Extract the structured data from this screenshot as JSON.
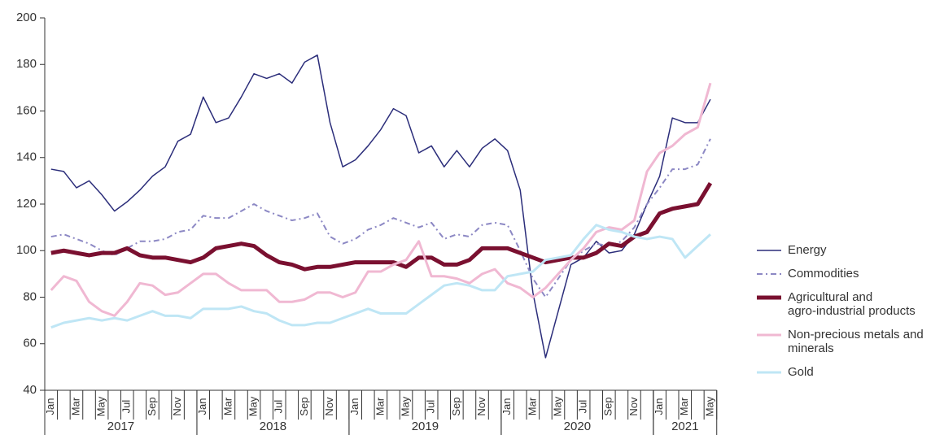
{
  "chart_data": {
    "type": "line",
    "categories": [
      "Jan",
      null,
      "Mar",
      null,
      "May",
      null,
      "Jul",
      null,
      "Sep",
      null,
      "Nov",
      null,
      "Jan",
      null,
      "Mar",
      null,
      "May",
      null,
      "Jul",
      null,
      "Sep",
      null,
      "Nov",
      null,
      "Jan",
      null,
      "Mar",
      null,
      "May",
      null,
      "Jul",
      null,
      "Sep",
      null,
      "Nov",
      null,
      "Jan",
      null,
      "Mar",
      null,
      "May",
      null,
      "Jul",
      null,
      "Sep",
      null,
      "Nov",
      null,
      "Jan",
      null,
      "Mar",
      null,
      "May"
    ],
    "years": [
      "2017",
      "2018",
      "2019",
      "2020",
      "2021"
    ],
    "ylim": [
      40,
      200
    ],
    "yticks": [
      40,
      60,
      80,
      100,
      120,
      140,
      160,
      180,
      200
    ],
    "grid": false,
    "legend": "right",
    "series": [
      {
        "name": "Energy",
        "color": "#2b2d7a",
        "width": 1.5,
        "dash": "none",
        "values": [
          135,
          134,
          127,
          130,
          124,
          117,
          121,
          126,
          132,
          136,
          147,
          150,
          166,
          155,
          157,
          166,
          176,
          174,
          176,
          172,
          181,
          184,
          155,
          136,
          139,
          145,
          152,
          161,
          158,
          142,
          145,
          136,
          143,
          136,
          144,
          148,
          143,
          126,
          82,
          54,
          74,
          94,
          97,
          104,
          99,
          100,
          107,
          120,
          132,
          157,
          155,
          155,
          165
        ]
      },
      {
        "name": "Commodities",
        "color": "#8c88c4",
        "width": 2,
        "dash": "7 4 2 4",
        "values": [
          106,
          107,
          105,
          103,
          100,
          98,
          101,
          104,
          104,
          105,
          108,
          109,
          115,
          114,
          114,
          117,
          120,
          117,
          115,
          113,
          114,
          116,
          106,
          103,
          105,
          109,
          111,
          114,
          112,
          110,
          112,
          105,
          107,
          106,
          111,
          112,
          111,
          100,
          88,
          80,
          88,
          96,
          100,
          103,
          102,
          104,
          110,
          120,
          127,
          135,
          135,
          137,
          148
        ]
      },
      {
        "name": "Agricultural and agro-industrial products",
        "color": "#7a1030",
        "width": 5,
        "dash": "none",
        "values": [
          99,
          100,
          99,
          98,
          99,
          99,
          101,
          98,
          97,
          97,
          96,
          95,
          97,
          101,
          102,
          103,
          102,
          98,
          95,
          94,
          92,
          93,
          93,
          94,
          95,
          95,
          95,
          95,
          93,
          97,
          97,
          94,
          94,
          96,
          101,
          101,
          101,
          99,
          97,
          95,
          96,
          97,
          97,
          99,
          103,
          102,
          106,
          108,
          116,
          118,
          119,
          120,
          129
        ]
      },
      {
        "name": "Non-precious metals and minerals",
        "color": "#f0b8d2",
        "width": 3,
        "dash": "none",
        "values": [
          83,
          89,
          87,
          78,
          74,
          72,
          78,
          86,
          85,
          81,
          82,
          86,
          90,
          90,
          86,
          83,
          83,
          83,
          78,
          78,
          79,
          82,
          82,
          80,
          82,
          91,
          91,
          94,
          96,
          104,
          89,
          89,
          88,
          86,
          90,
          92,
          86,
          84,
          80,
          84,
          90,
          96,
          101,
          108,
          110,
          109,
          113,
          134,
          142,
          145,
          150,
          153,
          172
        ]
      },
      {
        "name": "Gold",
        "color": "#bfe6f5",
        "width": 3,
        "dash": "none",
        "values": [
          67,
          69,
          70,
          71,
          70,
          71,
          70,
          72,
          74,
          72,
          72,
          71,
          75,
          75,
          75,
          76,
          74,
          73,
          70,
          68,
          68,
          69,
          69,
          71,
          73,
          75,
          73,
          73,
          73,
          77,
          81,
          85,
          86,
          85,
          83,
          83,
          89,
          90,
          91,
          96,
          97,
          98,
          105,
          111,
          109,
          108,
          106,
          105,
          106,
          105,
          97,
          102,
          107
        ]
      }
    ]
  }
}
